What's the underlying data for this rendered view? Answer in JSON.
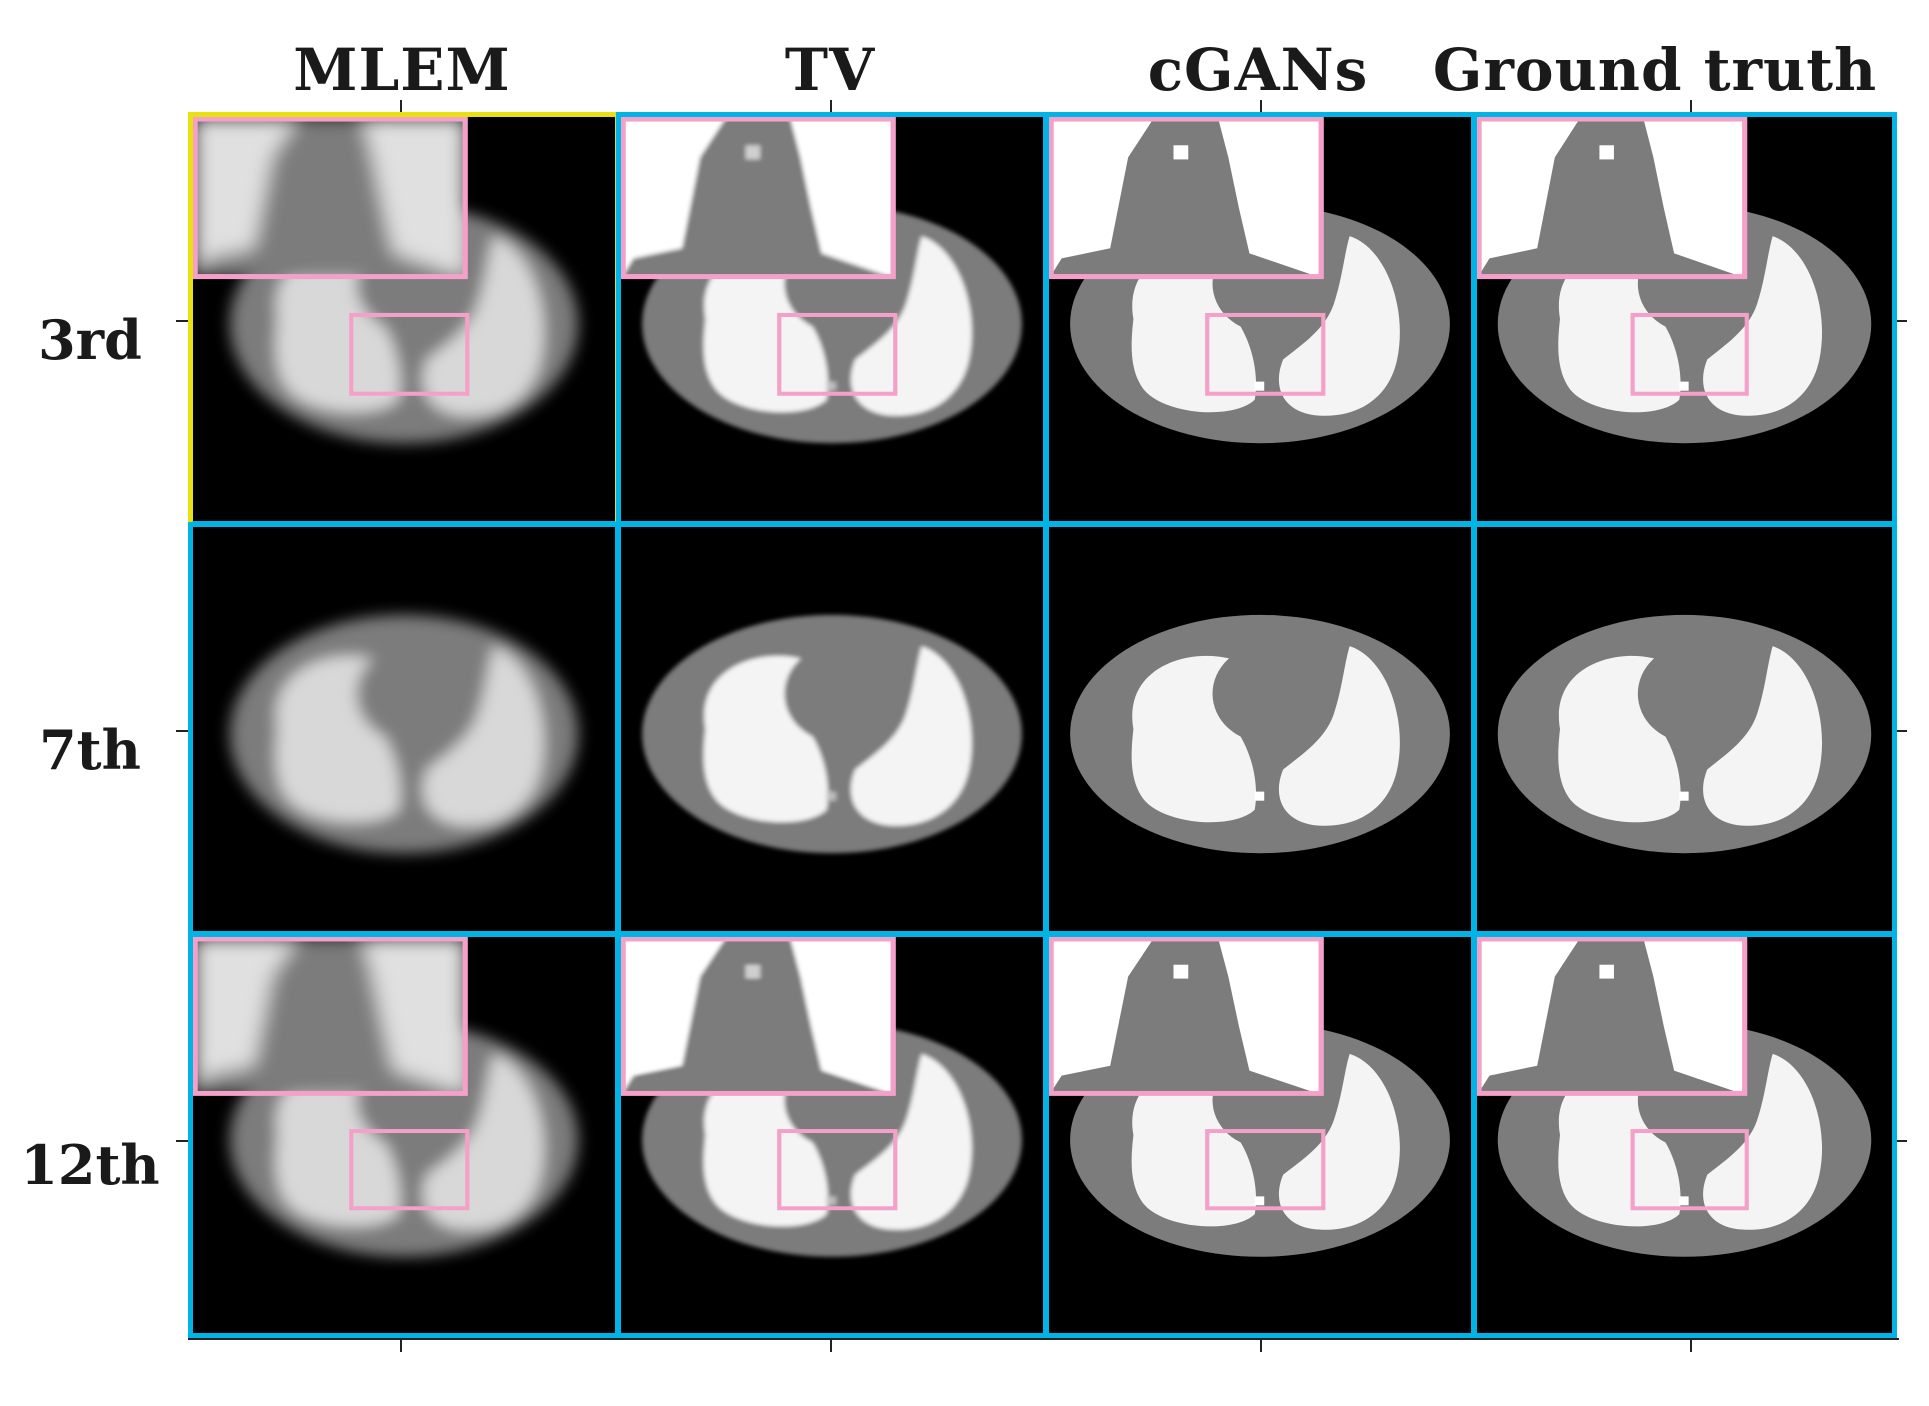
{
  "columns": [
    {
      "label": "MLEM",
      "style": "blur-heavy"
    },
    {
      "label": "TV",
      "style": "blur-light"
    },
    {
      "label": "cGANs",
      "style": "sharp"
    },
    {
      "label": "Ground truth",
      "style": "sharp"
    }
  ],
  "rows": [
    {
      "label": "3rd",
      "zoom_inset": true
    },
    {
      "label": "7th",
      "zoom_inset": false
    },
    {
      "label": "12th",
      "zoom_inset": true
    }
  ],
  "colors": {
    "grid_border": "#00b4e6",
    "first_cell_border": "#e8e010",
    "inset_border": "#f5a0c8",
    "background": "#000000",
    "body_gray": "#7c7c7c",
    "lung_white": "#f4f4f4"
  }
}
